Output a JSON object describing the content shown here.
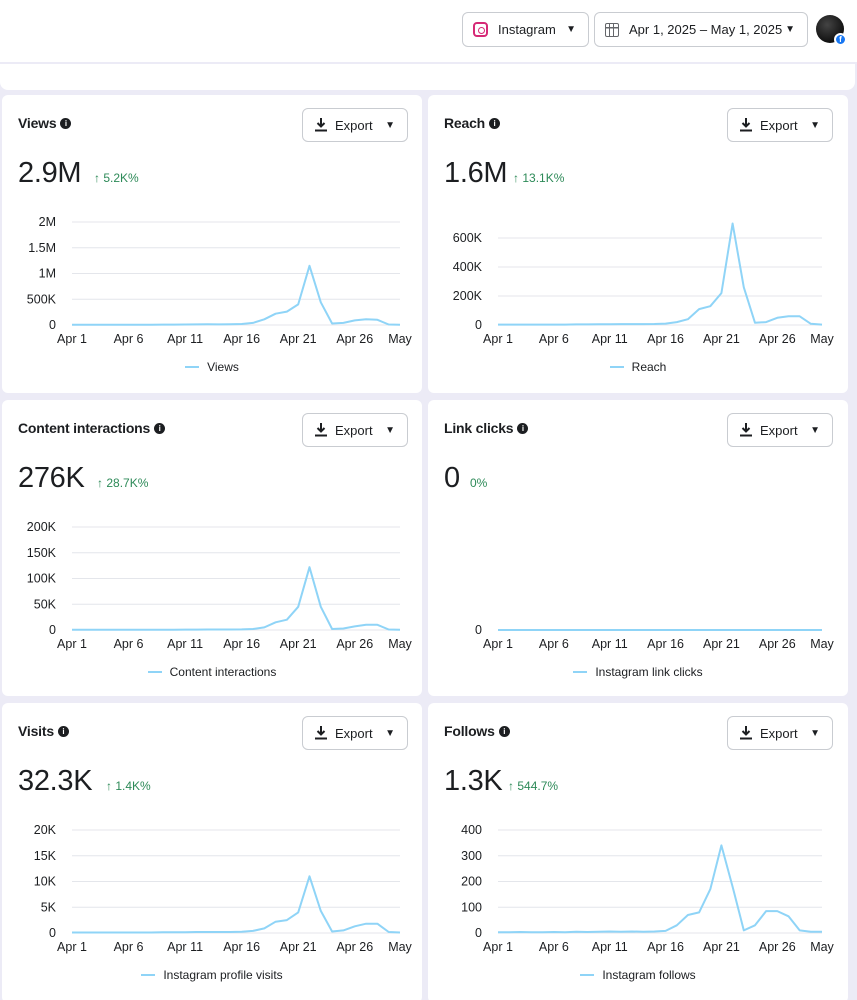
{
  "header": {
    "platform": {
      "label": "Instagram",
      "icon": "instagram-icon"
    },
    "date_range": {
      "label": "Apr 1, 2025 – May 1, 2025",
      "icon": "calendar-icon"
    },
    "avatar_badge": "f"
  },
  "export_label": "Export",
  "x_ticks": [
    "Apr 1",
    "Apr 6",
    "Apr 11",
    "Apr 16",
    "Apr 21",
    "Apr 26",
    "May"
  ],
  "line_color": "#8fd4f7",
  "cards": [
    {
      "title": "Views",
      "value": "2.9M",
      "arrow": "↑",
      "change": "5.2K%",
      "legend": "Views"
    },
    {
      "title": "Reach",
      "value": "1.6M",
      "arrow": "↑",
      "change": "13.1K%",
      "legend": "Reach"
    },
    {
      "title": "Content interactions",
      "value": "276K",
      "arrow": "↑",
      "change": "28.7K%",
      "legend": "Content interactions"
    },
    {
      "title": "Link clicks",
      "value": "0",
      "arrow": "",
      "change": "0%",
      "legend": "Instagram link clicks"
    },
    {
      "title": "Visits",
      "value": "32.3K",
      "arrow": "↑",
      "change": "1.4K%",
      "legend": "Instagram profile visits"
    },
    {
      "title": "Follows",
      "value": "1.3K",
      "arrow": "↑",
      "change": "544.7%",
      "legend": "Instagram follows"
    }
  ],
  "chart_data": [
    {
      "type": "line",
      "title": "Views",
      "series_name": "Views",
      "x": [
        "Apr 1",
        "Apr 2",
        "Apr 3",
        "Apr 4",
        "Apr 5",
        "Apr 6",
        "Apr 7",
        "Apr 8",
        "Apr 9",
        "Apr 10",
        "Apr 11",
        "Apr 12",
        "Apr 13",
        "Apr 14",
        "Apr 15",
        "Apr 16",
        "Apr 17",
        "Apr 18",
        "Apr 19",
        "Apr 20",
        "Apr 21",
        "Apr 22",
        "Apr 23",
        "Apr 24",
        "Apr 25",
        "Apr 26",
        "Apr 27",
        "Apr 28",
        "Apr 29",
        "May 1"
      ],
      "values": [
        5000,
        5000,
        6000,
        5000,
        5000,
        6000,
        5000,
        6000,
        7000,
        8000,
        10000,
        12000,
        13000,
        12000,
        15000,
        20000,
        40000,
        110000,
        220000,
        260000,
        400000,
        1150000,
        440000,
        30000,
        40000,
        90000,
        110000,
        100000,
        10000,
        5000
      ],
      "y_ticks": [
        "2M",
        "1.5M",
        "1M",
        "500K",
        "0"
      ],
      "y_tick_values": [
        2000000,
        1500000,
        1000000,
        500000,
        0
      ],
      "ylim": [
        0,
        2000000
      ]
    },
    {
      "type": "line",
      "title": "Reach",
      "series_name": "Reach",
      "x": [
        "Apr 1",
        "Apr 2",
        "Apr 3",
        "Apr 4",
        "Apr 5",
        "Apr 6",
        "Apr 7",
        "Apr 8",
        "Apr 9",
        "Apr 10",
        "Apr 11",
        "Apr 12",
        "Apr 13",
        "Apr 14",
        "Apr 15",
        "Apr 16",
        "Apr 17",
        "Apr 18",
        "Apr 19",
        "Apr 20",
        "Apr 21",
        "Apr 22",
        "Apr 23",
        "Apr 24",
        "Apr 25",
        "Apr 26",
        "Apr 27",
        "Apr 28",
        "Apr 29",
        "May 1"
      ],
      "values": [
        3000,
        3000,
        3000,
        3000,
        3000,
        3000,
        3000,
        4000,
        4000,
        5000,
        5000,
        6000,
        6000,
        6000,
        7000,
        10000,
        20000,
        40000,
        110000,
        130000,
        220000,
        700000,
        260000,
        15000,
        20000,
        50000,
        60000,
        60000,
        8000,
        3000
      ],
      "y_ticks": [
        "600K",
        "400K",
        "200K",
        "0"
      ],
      "y_tick_values": [
        600000,
        400000,
        200000,
        0
      ],
      "ylim": [
        0,
        700000
      ]
    },
    {
      "type": "line",
      "title": "Content interactions",
      "series_name": "Content interactions",
      "x": [
        "Apr 1",
        "Apr 2",
        "Apr 3",
        "Apr 4",
        "Apr 5",
        "Apr 6",
        "Apr 7",
        "Apr 8",
        "Apr 9",
        "Apr 10",
        "Apr 11",
        "Apr 12",
        "Apr 13",
        "Apr 14",
        "Apr 15",
        "Apr 16",
        "Apr 17",
        "Apr 18",
        "Apr 19",
        "Apr 20",
        "Apr 21",
        "Apr 22",
        "Apr 23",
        "Apr 24",
        "Apr 25",
        "Apr 26",
        "Apr 27",
        "Apr 28",
        "Apr 29",
        "May 1"
      ],
      "values": [
        500,
        500,
        500,
        500,
        500,
        500,
        500,
        500,
        600,
        600,
        700,
        800,
        900,
        900,
        1000,
        1200,
        2000,
        5000,
        15000,
        20000,
        45000,
        122000,
        45000,
        2000,
        3000,
        7000,
        10000,
        10000,
        1000,
        500
      ],
      "y_ticks": [
        "200K",
        "150K",
        "100K",
        "50K",
        "0"
      ],
      "y_tick_values": [
        200000,
        150000,
        100000,
        50000,
        0
      ],
      "ylim": [
        0,
        200000
      ]
    },
    {
      "type": "line",
      "title": "Link clicks",
      "series_name": "Instagram link clicks",
      "x": [
        "Apr 1",
        "Apr 2",
        "Apr 3",
        "Apr 4",
        "Apr 5",
        "Apr 6",
        "Apr 7",
        "Apr 8",
        "Apr 9",
        "Apr 10",
        "Apr 11",
        "Apr 12",
        "Apr 13",
        "Apr 14",
        "Apr 15",
        "Apr 16",
        "Apr 17",
        "Apr 18",
        "Apr 19",
        "Apr 20",
        "Apr 21",
        "Apr 22",
        "Apr 23",
        "Apr 24",
        "Apr 25",
        "Apr 26",
        "Apr 27",
        "Apr 28",
        "Apr 29",
        "May 1"
      ],
      "values": [
        0,
        0,
        0,
        0,
        0,
        0,
        0,
        0,
        0,
        0,
        0,
        0,
        0,
        0,
        0,
        0,
        0,
        0,
        0,
        0,
        0,
        0,
        0,
        0,
        0,
        0,
        0,
        0,
        0,
        0
      ],
      "y_ticks": [
        "0"
      ],
      "y_tick_values": [
        0
      ],
      "ylim": [
        0,
        1
      ]
    },
    {
      "type": "line",
      "title": "Visits",
      "series_name": "Instagram profile visits",
      "x": [
        "Apr 1",
        "Apr 2",
        "Apr 3",
        "Apr 4",
        "Apr 5",
        "Apr 6",
        "Apr 7",
        "Apr 8",
        "Apr 9",
        "Apr 10",
        "Apr 11",
        "Apr 12",
        "Apr 13",
        "Apr 14",
        "Apr 15",
        "Apr 16",
        "Apr 17",
        "Apr 18",
        "Apr 19",
        "Apr 20",
        "Apr 21",
        "Apr 22",
        "Apr 23",
        "Apr 24",
        "Apr 25",
        "Apr 26",
        "Apr 27",
        "Apr 28",
        "Apr 29",
        "May 1"
      ],
      "values": [
        100,
        100,
        100,
        100,
        100,
        100,
        100,
        100,
        150,
        150,
        150,
        200,
        200,
        200,
        200,
        250,
        400,
        900,
        2200,
        2500,
        4000,
        11000,
        4300,
        300,
        500,
        1300,
        1800,
        1800,
        200,
        100
      ],
      "y_ticks": [
        "20K",
        "15K",
        "10K",
        "5K",
        "0"
      ],
      "y_tick_values": [
        20000,
        15000,
        10000,
        5000,
        0
      ],
      "ylim": [
        0,
        20000
      ]
    },
    {
      "type": "line",
      "title": "Follows",
      "series_name": "Instagram follows",
      "x": [
        "Apr 1",
        "Apr 2",
        "Apr 3",
        "Apr 4",
        "Apr 5",
        "Apr 6",
        "Apr 7",
        "Apr 8",
        "Apr 9",
        "Apr 10",
        "Apr 11",
        "Apr 12",
        "Apr 13",
        "Apr 14",
        "Apr 15",
        "Apr 16",
        "Apr 17",
        "Apr 18",
        "Apr 19",
        "Apr 20",
        "Apr 21",
        "Apr 22",
        "Apr 23",
        "Apr 24",
        "Apr 25",
        "Apr 26",
        "Apr 27",
        "Apr 28",
        "Apr 29",
        "May 1"
      ],
      "values": [
        3,
        3,
        4,
        3,
        3,
        4,
        3,
        5,
        4,
        5,
        6,
        5,
        6,
        5,
        6,
        8,
        30,
        70,
        80,
        170,
        340,
        180,
        10,
        30,
        85,
        85,
        65,
        10,
        5,
        5
      ],
      "y_ticks": [
        "400",
        "300",
        "200",
        "100",
        "0"
      ],
      "y_tick_values": [
        400,
        300,
        200,
        100,
        0
      ],
      "ylim": [
        0,
        400
      ]
    }
  ]
}
